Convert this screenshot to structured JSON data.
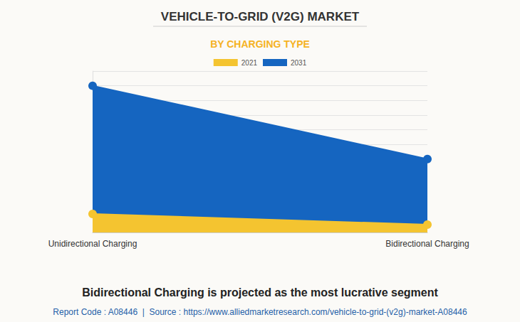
{
  "chart_data": {
    "type": "area",
    "title": "VEHICLE-TO-GRID (V2G) MARKET",
    "subtitle": "BY CHARGING TYPE",
    "annotations": [
      "Bidirectional Charging is projected as the most lucrative segment",
      "Report Code : A08446  |  Source : https://www.alliedmarketresearch.com/vehicle-to-grid-(v2g)-market-A08446"
    ],
    "categories": [
      "Unidirectional Charging",
      "Bidirectional Charging"
    ],
    "series": [
      {
        "name": "2021",
        "color": "#f4c430",
        "values": [
          1.26,
          0.53
        ]
      },
      {
        "name": "2031",
        "color": "#1565c0",
        "values": [
          10.0,
          5.0
        ]
      }
    ],
    "ylim": [
      0,
      11
    ],
    "yticks": [
      0,
      1,
      2,
      3,
      4,
      5,
      6,
      7,
      8,
      9,
      10,
      11
    ],
    "grid": true,
    "legend": "top",
    "tick_labels": "x",
    "marker": "circle",
    "stacked": false
  }
}
